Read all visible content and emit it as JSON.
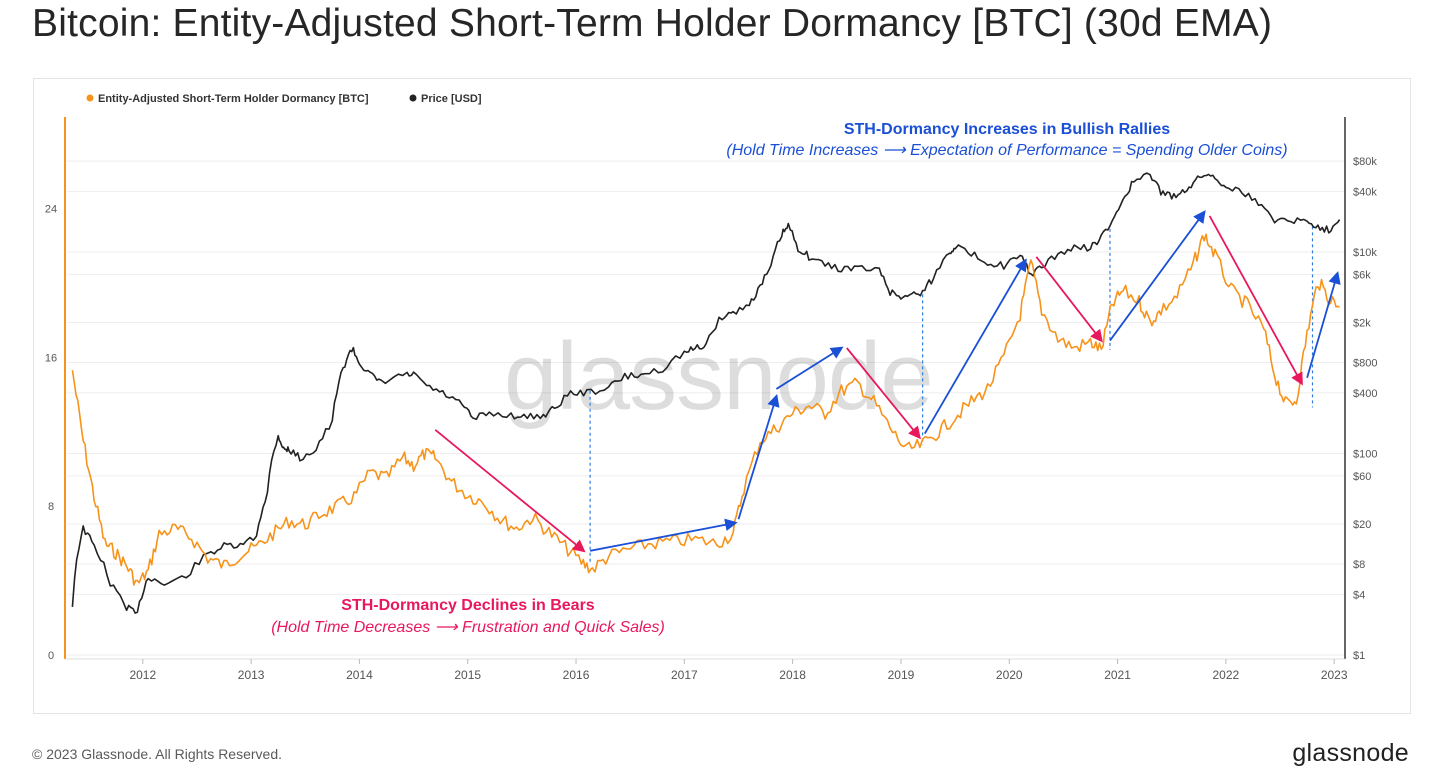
{
  "title": "Bitcoin: Entity-Adjusted Short-Term Holder Dormancy [BTC] (30d EMA)",
  "footer": {
    "copyright": "© 2023 Glassnode. All Rights Reserved.",
    "logo": "glassnode"
  },
  "watermark": "glassnode",
  "colors": {
    "dormancy": "#F7931A",
    "price": "#222222",
    "bull_arrow": "#1a4fd6",
    "bear_arrow": "#e8185d",
    "guide": "#2f7de0"
  },
  "annotations": {
    "bull": {
      "title": "STH-Dormancy Increases in Bullish Rallies",
      "subtitle": "(Hold Time Increases ⟶ Expectation of Performance = Spending Older Coins)"
    },
    "bear": {
      "title": "STH-Dormancy Declines in Bears",
      "subtitle": "(Hold Time Decreases ⟶ Frustration and Quick Sales)"
    }
  },
  "chart_data": {
    "type": "line",
    "legend": {
      "position": "top-left",
      "items": [
        "Entity-Adjusted Short-Term Holder Dormancy [BTC]",
        "Price [USD]"
      ]
    },
    "x_range": [
      2011.3,
      2023.1
    ],
    "x_ticks": [
      "2012",
      "2013",
      "2014",
      "2015",
      "2016",
      "2017",
      "2018",
      "2019",
      "2020",
      "2021",
      "2022",
      "2023"
    ],
    "y_left": {
      "ticks": [
        "0",
        "8",
        "16",
        "24"
      ],
      "range": [
        0,
        28.7
      ]
    },
    "y_right": {
      "scale": "log",
      "range": [
        1,
        200000
      ],
      "ticks": [
        "$1",
        "$4",
        "$8",
        "$20",
        "$60",
        "$100",
        "$400",
        "$800",
        "$2k",
        "$6k",
        "$10k",
        "$40k",
        "$80k"
      ],
      "tick_values": [
        1,
        4,
        8,
        20,
        60,
        100,
        400,
        800,
        2000,
        6000,
        10000,
        40000,
        80000
      ]
    },
    "series": [
      {
        "name": "Entity-Adjusted Short-Term Holder Dormancy [BTC]",
        "axis": "left",
        "x": [
          2011.35,
          2011.45,
          2011.55,
          2011.65,
          2011.75,
          2011.85,
          2011.95,
          2012.05,
          2012.15,
          2012.3,
          2012.45,
          2012.6,
          2012.75,
          2012.9,
          2013.05,
          2013.2,
          2013.35,
          2013.5,
          2013.65,
          2013.8,
          2013.95,
          2014.1,
          2014.25,
          2014.4,
          2014.5,
          2014.6,
          2014.7,
          2014.85,
          2015.0,
          2015.15,
          2015.3,
          2015.45,
          2015.6,
          2015.75,
          2015.9,
          2016.05,
          2016.15,
          2016.3,
          2016.5,
          2016.7,
          2016.9,
          2017.1,
          2017.3,
          2017.45,
          2017.55,
          2017.7,
          2017.85,
          2018.0,
          2018.15,
          2018.3,
          2018.45,
          2018.6,
          2018.75,
          2018.9,
          2019.05,
          2019.2,
          2019.35,
          2019.5,
          2019.65,
          2019.8,
          2019.95,
          2020.1,
          2020.2,
          2020.3,
          2020.45,
          2020.6,
          2020.75,
          2020.85,
          2020.95,
          2021.05,
          2021.2,
          2021.3,
          2021.4,
          2021.55,
          2021.7,
          2021.8,
          2021.9,
          2022.05,
          2022.2,
          2022.35,
          2022.45,
          2022.55,
          2022.65,
          2022.75,
          2022.85,
          2022.95,
          2023.05
        ],
        "y": [
          15.3,
          11.5,
          8.5,
          6.0,
          5.5,
          4.8,
          3.8,
          4.5,
          6.5,
          6.8,
          6.3,
          5.2,
          4.8,
          5.4,
          5.8,
          6.5,
          7.2,
          7.0,
          7.6,
          8.0,
          8.5,
          9.8,
          9.5,
          10.6,
          10.2,
          10.8,
          10.6,
          9.3,
          8.6,
          8.2,
          7.3,
          6.8,
          7.4,
          6.6,
          5.8,
          5.0,
          4.6,
          5.3,
          5.7,
          6.0,
          6.1,
          6.2,
          6.0,
          6.5,
          9.0,
          11.5,
          12.2,
          13.0,
          13.4,
          13.0,
          14.2,
          14.6,
          13.6,
          12.2,
          11.0,
          11.3,
          12.0,
          12.8,
          13.6,
          14.3,
          16.0,
          18.3,
          21.1,
          18.5,
          17.0,
          16.5,
          16.8,
          16.4,
          18.8,
          19.6,
          19.0,
          17.9,
          18.5,
          19.3,
          21.0,
          22.6,
          21.5,
          19.6,
          18.8,
          17.5,
          15.1,
          13.5,
          13.7,
          17.3,
          20.1,
          19.2,
          18.7
        ]
      },
      {
        "name": "Price [USD]",
        "axis": "right",
        "x": [
          2011.35,
          2011.45,
          2011.55,
          2011.7,
          2011.85,
          2011.95,
          2012.05,
          2012.2,
          2012.4,
          2012.6,
          2012.75,
          2012.9,
          2013.05,
          2013.15,
          2013.25,
          2013.3,
          2013.35,
          2013.45,
          2013.6,
          2013.75,
          2013.85,
          2013.93,
          2014.0,
          2014.1,
          2014.2,
          2014.4,
          2014.5,
          2014.65,
          2014.8,
          2014.95,
          2015.05,
          2015.2,
          2015.4,
          2015.55,
          2015.7,
          2015.8,
          2015.95,
          2016.1,
          2016.3,
          2016.45,
          2016.6,
          2016.8,
          2017.0,
          2017.1,
          2017.2,
          2017.35,
          2017.45,
          2017.6,
          2017.7,
          2017.8,
          2017.9,
          2017.96,
          2018.05,
          2018.15,
          2018.3,
          2018.45,
          2018.6,
          2018.8,
          2018.9,
          2019.0,
          2019.1,
          2019.2,
          2019.3,
          2019.45,
          2019.5,
          2019.65,
          2019.8,
          2019.95,
          2020.1,
          2020.2,
          2020.3,
          2020.45,
          2020.6,
          2020.75,
          2020.85,
          2020.95,
          2021.05,
          2021.15,
          2021.3,
          2021.4,
          2021.5,
          2021.6,
          2021.7,
          2021.8,
          2021.9,
          2022.0,
          2022.15,
          2022.3,
          2022.45,
          2022.6,
          2022.75,
          2022.85,
          2022.95,
          2023.05
        ],
        "y": [
          3,
          18,
          12,
          5,
          3,
          2.5,
          6,
          5,
          6,
          10,
          12,
          12,
          15,
          40,
          150,
          110,
          110,
          90,
          110,
          200,
          700,
          1100,
          800,
          600,
          500,
          600,
          600,
          450,
          380,
          300,
          220,
          250,
          240,
          230,
          240,
          280,
          400,
          400,
          450,
          580,
          600,
          700,
          1000,
          1100,
          1200,
          2300,
          2500,
          3000,
          4500,
          7000,
          15000,
          18000,
          11000,
          9000,
          7500,
          6800,
          7000,
          6500,
          4000,
          3600,
          3800,
          4000,
          5500,
          10000,
          11500,
          9500,
          8000,
          7300,
          9000,
          6000,
          7000,
          9500,
          11000,
          11000,
          14000,
          19000,
          33000,
          50000,
          58000,
          40000,
          35000,
          40000,
          48000,
          60000,
          55000,
          45000,
          40000,
          30000,
          21000,
          21000,
          20000,
          18000,
          16500,
          21000
        ]
      }
    ]
  }
}
